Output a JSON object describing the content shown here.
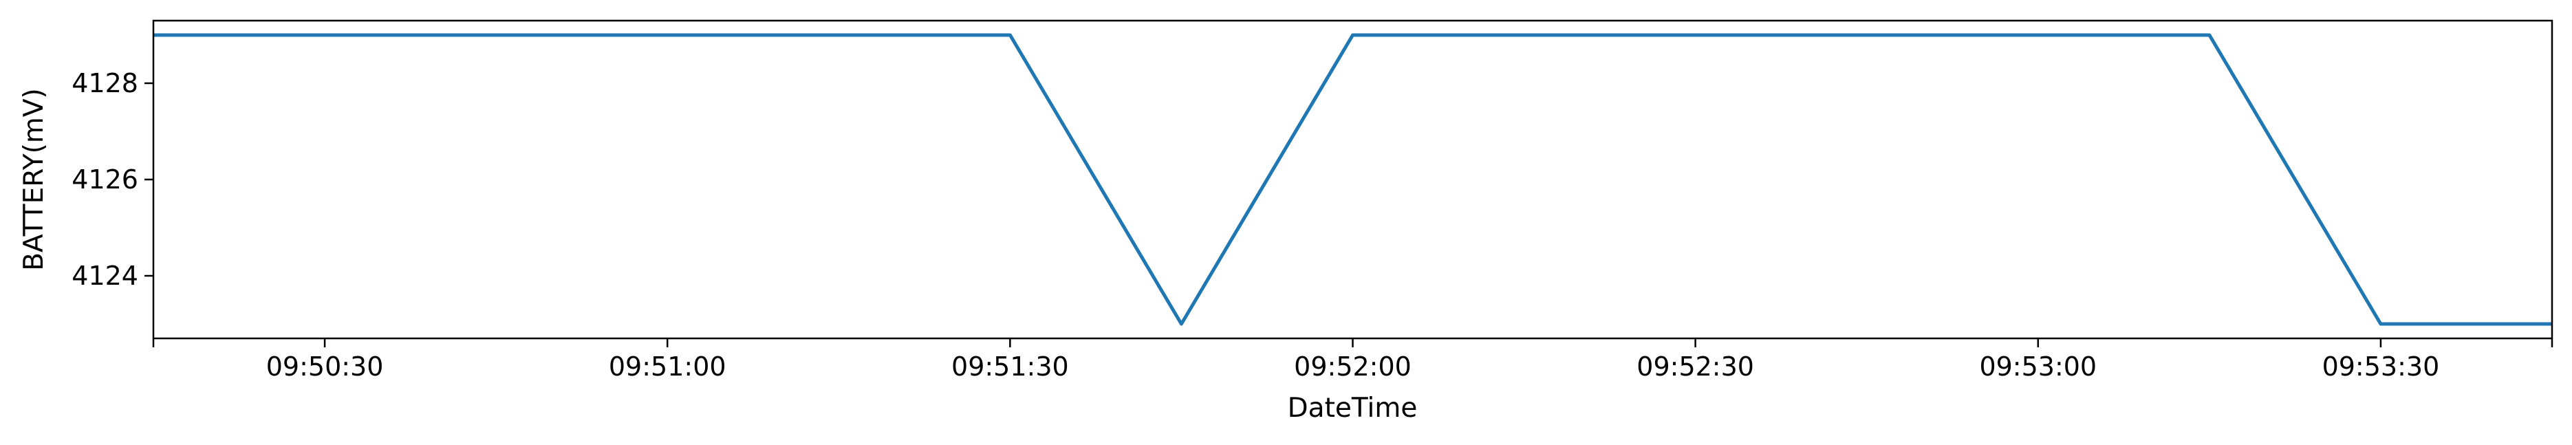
{
  "chart_data": {
    "type": "line",
    "xlabel": "DateTime",
    "ylabel": "BATTERY(mV)",
    "xlim": [
      "09:50:15",
      "09:53:45"
    ],
    "ylim": [
      4122.7,
      4129.3
    ],
    "x_ticks": [
      "09:50:30",
      "09:51:00",
      "09:51:30",
      "09:52:00",
      "09:52:30",
      "09:53:00",
      "09:53:30"
    ],
    "y_ticks": [
      4124,
      4126,
      4128
    ],
    "grid": false,
    "series": [
      {
        "color": "#1f77b4",
        "x": [
          "09:50:15",
          "09:51:30",
          "09:51:45",
          "09:52:00",
          "09:53:15",
          "09:53:30",
          "09:53:45"
        ],
        "y": [
          4129,
          4129,
          4123,
          4129,
          4129,
          4123,
          4123
        ]
      }
    ]
  }
}
